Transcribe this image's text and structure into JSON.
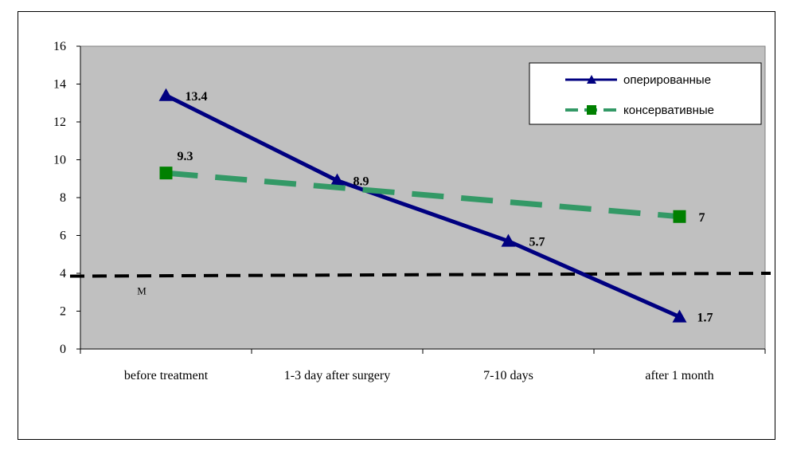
{
  "chart_data": {
    "type": "line",
    "categories": [
      "before treatment",
      "1-3 day after surgery",
      "7-10 days",
      "after 1 month"
    ],
    "ylim": [
      0,
      16
    ],
    "yticks": [
      0,
      2,
      4,
      6,
      8,
      10,
      12,
      14,
      16
    ],
    "grid": false,
    "legend_position": "top-right",
    "series": [
      {
        "name": "оперированные",
        "values": [
          13.4,
          8.9,
          5.7,
          1.7
        ],
        "labels": [
          "13.4",
          "8.9",
          "5.7",
          "1.7"
        ],
        "color": "#000080",
        "marker": "triangle",
        "line_style": "solid"
      },
      {
        "name": "консервативные",
        "values": [
          9.3,
          null,
          null,
          7
        ],
        "labels": [
          "9.3",
          "",
          "",
          "7"
        ],
        "color": "#339966",
        "marker_color": "#008000",
        "marker": "square",
        "line_style": "dashed"
      }
    ],
    "reference_line": {
      "label": "M",
      "start_value": 3.85,
      "end_value": 4.0,
      "color": "#000000",
      "line_style": "dashed"
    },
    "plot_background": "#c0c0c0"
  }
}
